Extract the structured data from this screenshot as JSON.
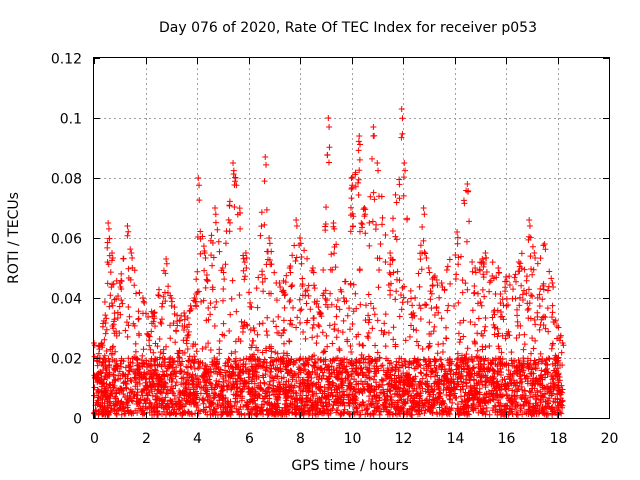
{
  "chart_data": {
    "type": "scatter",
    "title": "Day 076 of 2020, Rate Of TEC Index for receiver p053",
    "xlabel": "GPS time / hours",
    "ylabel": "ROTI / TECUs",
    "xlim": [
      0,
      20
    ],
    "ylim": [
      0,
      0.12
    ],
    "x_ticks": [
      0,
      2,
      4,
      6,
      8,
      10,
      12,
      14,
      16,
      18,
      20
    ],
    "x_tick_labels": [
      "0",
      "2",
      "4",
      "6",
      "8",
      "10",
      "12",
      "14",
      "16",
      "18",
      "20"
    ],
    "y_ticks": [
      0,
      0.02,
      0.04,
      0.06,
      0.08,
      0.1,
      0.12
    ],
    "y_tick_labels": [
      "0",
      "0.02",
      "0.04",
      "0.06",
      "0.08",
      "0.1",
      "0.12"
    ],
    "grid": true,
    "marker": "+",
    "marker_color": "#ff0000",
    "data_x_range": [
      0,
      18.2
    ],
    "envelope": {
      "x": [
        0,
        0.3,
        0.55,
        0.7,
        1.0,
        1.3,
        1.45,
        1.9,
        2.3,
        2.8,
        3.0,
        3.5,
        3.9,
        4.05,
        4.3,
        4.7,
        5.0,
        5.4,
        5.5,
        5.9,
        6.2,
        6.65,
        6.8,
        7.2,
        7.6,
        7.85,
        8.0,
        8.5,
        8.8,
        9.1,
        9.3,
        9.7,
        10.0,
        10.3,
        10.5,
        10.85,
        11.0,
        11.5,
        11.95,
        12.05,
        12.4,
        12.8,
        13.0,
        13.5,
        14.1,
        14.5,
        14.8,
        15.2,
        15.7,
        16.0,
        16.5,
        16.9,
        17.1,
        17.5,
        17.8,
        18.2
      ],
      "ymax": [
        0.025,
        0.025,
        0.065,
        0.055,
        0.045,
        0.064,
        0.055,
        0.04,
        0.035,
        0.053,
        0.04,
        0.035,
        0.04,
        0.08,
        0.055,
        0.07,
        0.05,
        0.085,
        0.08,
        0.055,
        0.03,
        0.087,
        0.06,
        0.045,
        0.05,
        0.066,
        0.06,
        0.05,
        0.035,
        0.1,
        0.065,
        0.04,
        0.08,
        0.094,
        0.07,
        0.097,
        0.085,
        0.055,
        0.103,
        0.085,
        0.035,
        0.07,
        0.05,
        0.045,
        0.062,
        0.078,
        0.05,
        0.055,
        0.05,
        0.047,
        0.052,
        0.066,
        0.055,
        0.058,
        0.045,
        0.025
      ]
    },
    "baseline_range": [
      0.001,
      0.02
    ]
  }
}
